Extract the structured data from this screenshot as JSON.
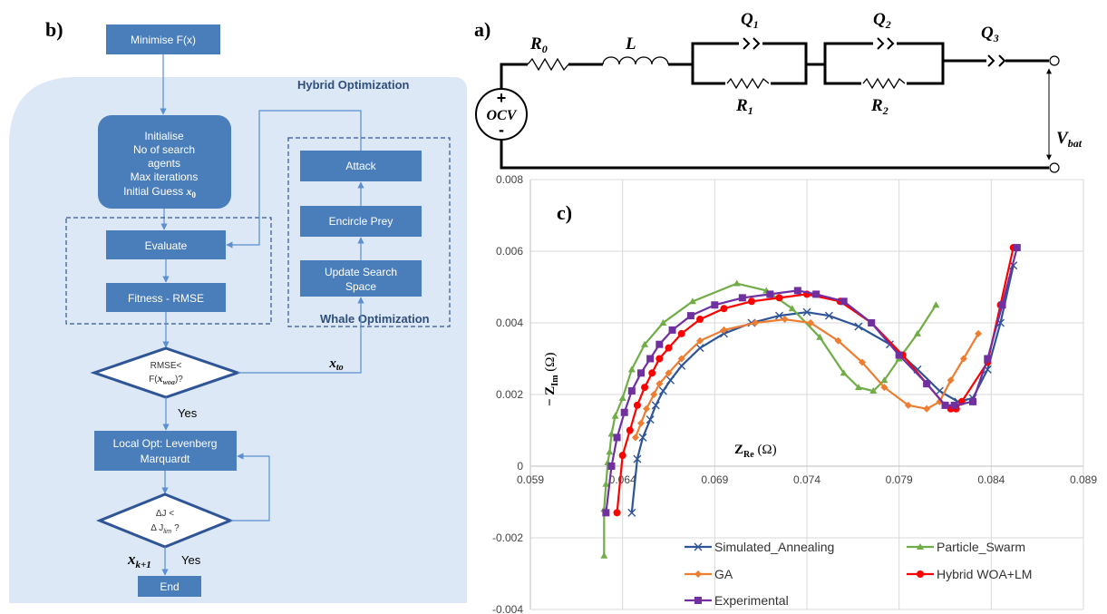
{
  "panel_b": {
    "label": "b)",
    "region_title": "Hybrid Optimization",
    "minimise": "Minimise F(x)",
    "initialise": [
      "Initialise",
      "No of search",
      "agents",
      "Max iterations",
      "Initial Guess"
    ],
    "initial_guess_symbol": "x",
    "initial_guess_sub": "0",
    "evaluate": "Evaluate",
    "fitness": "Fitness - RMSE",
    "attack": "Attack",
    "encircle": "Encircle Prey",
    "update": [
      "Update Search",
      "Space"
    ],
    "whale_title": "Whale Optimization",
    "decision1": [
      "RMSE<",
      "F("
    ],
    "decision1_symbol": "x",
    "decision1_sub": "woa",
    "decision1_end": ")?",
    "x_to_symbol": "x",
    "x_to_sub": "to",
    "yes1": "Yes",
    "local_opt": [
      "Local Opt: Levenberg",
      "Marquardt"
    ],
    "decision2": [
      "ΔJ <",
      "Δ J",
      "?"
    ],
    "decision2_sub": "lim",
    "xk1_symbol": "x",
    "xk1_sub": "k+1",
    "yes2": "Yes",
    "end": "End",
    "colors": {
      "box": "#4a7ebb",
      "region": "#dce8f5",
      "line": "#5b8fd0"
    }
  },
  "panel_a": {
    "label": "a)",
    "source": {
      "line1": "+",
      "line2": "OCV",
      "line3": "-"
    },
    "R0": {
      "sym": "R",
      "sub": "0"
    },
    "L": "L",
    "Q1": {
      "sym": "Q",
      "sub": "1"
    },
    "R1": {
      "sym": "R",
      "sub": "1"
    },
    "Q2": {
      "sym": "Q",
      "sub": "2"
    },
    "R2": {
      "sym": "R",
      "sub": "2"
    },
    "Q3": {
      "sym": "Q",
      "sub": "3"
    },
    "Vbat": {
      "sym": "V",
      "sub": "bat"
    }
  },
  "chart_data": {
    "type": "scatter",
    "panel_label": "c)",
    "xlabel": "Z",
    "xlabel_sub": "Re",
    "xlabel_unit": " (Ω)",
    "ylabel": "− Z",
    "ylabel_sub": "Im",
    "ylabel_unit": " (Ω)",
    "xlim": [
      0.059,
      0.089
    ],
    "ylim": [
      -0.004,
      0.008
    ],
    "xticks": [
      "0.059",
      "0.064",
      "0.069",
      "0.074",
      "0.079",
      "0.084",
      "0.089"
    ],
    "yticks": [
      "-0.004",
      "-0.002",
      "0",
      "0.002",
      "0.004",
      "0.006",
      "0.008"
    ],
    "xtick_values": [
      0.059,
      0.064,
      0.069,
      0.074,
      0.079,
      0.084,
      0.089
    ],
    "ytick_values": [
      -0.004,
      -0.002,
      0,
      0.002,
      0.004,
      0.006,
      0.008
    ],
    "grid": true,
    "legend_position": "bottom",
    "series": [
      {
        "name": "Simulated_Annealing",
        "color": "#2f5597",
        "marker": "x",
        "x": [
          0.0645,
          0.0648,
          0.0651,
          0.0655,
          0.0658,
          0.0662,
          0.0666,
          0.0672,
          0.0682,
          0.0695,
          0.071,
          0.0725,
          0.074,
          0.0752,
          0.0768,
          0.0785,
          0.08,
          0.0812,
          0.0822,
          0.083,
          0.0838,
          0.0845,
          0.0852
        ],
        "y": [
          -0.0013,
          0.0002,
          0.0008,
          0.0013,
          0.0017,
          0.0021,
          0.0024,
          0.0028,
          0.0033,
          0.0037,
          0.004,
          0.0042,
          0.0043,
          0.0042,
          0.0039,
          0.0034,
          0.0027,
          0.0021,
          0.0018,
          0.0019,
          0.0027,
          0.004,
          0.0056
        ]
      },
      {
        "name": "Particle_Swarm",
        "color": "#70ad47",
        "marker": "triangle",
        "x": [
          0.063,
          0.063,
          0.0631,
          0.0632,
          0.0633,
          0.0634,
          0.0636,
          0.064,
          0.0645,
          0.0652,
          0.0662,
          0.0678,
          0.0702,
          0.0718,
          0.0732,
          0.0747,
          0.076,
          0.0768,
          0.0776,
          0.0782,
          0.079,
          0.08,
          0.081
        ],
        "y": [
          -0.0025,
          -0.0012,
          -0.0005,
          0.0001,
          0.0004,
          0.0009,
          0.0014,
          0.0019,
          0.0027,
          0.0034,
          0.004,
          0.0046,
          0.0051,
          0.0049,
          0.0044,
          0.0036,
          0.0026,
          0.0022,
          0.0021,
          0.0024,
          0.003,
          0.0037,
          0.0045
        ]
      },
      {
        "name": "GA",
        "color": "#ed7d31",
        "marker": "diamond",
        "x": [
          0.0647,
          0.065,
          0.0653,
          0.0657,
          0.066,
          0.0665,
          0.0672,
          0.0682,
          0.0695,
          0.0712,
          0.0728,
          0.0742,
          0.0757,
          0.077,
          0.0782,
          0.0795,
          0.0805,
          0.0812,
          0.0818,
          0.0825,
          0.0833
        ],
        "y": [
          0.0008,
          0.0012,
          0.0016,
          0.002,
          0.0023,
          0.0026,
          0.003,
          0.0035,
          0.0038,
          0.004,
          0.0041,
          0.004,
          0.0035,
          0.0029,
          0.0022,
          0.0017,
          0.0016,
          0.0018,
          0.0024,
          0.003,
          0.0037
        ]
      },
      {
        "name": "Hybrid WOA+LM",
        "color": "#ff0000",
        "marker": "circle",
        "x": [
          0.0637,
          0.064,
          0.0644,
          0.0648,
          0.0652,
          0.0656,
          0.066,
          0.0665,
          0.0672,
          0.0682,
          0.0695,
          0.071,
          0.0725,
          0.074,
          0.0758,
          0.0775,
          0.0792,
          0.0805,
          0.0815,
          0.0818,
          0.0821,
          0.0824,
          0.0838,
          0.0845,
          0.0852
        ],
        "y": [
          -0.0013,
          0.0003,
          0.001,
          0.0017,
          0.0022,
          0.0026,
          0.003,
          0.0033,
          0.0037,
          0.0041,
          0.0044,
          0.0046,
          0.0047,
          0.0048,
          0.0046,
          0.004,
          0.0031,
          0.0023,
          0.0017,
          0.0016,
          0.0016,
          0.0018,
          0.0029,
          0.0045,
          0.0061
        ]
      },
      {
        "name": "Experimental",
        "color": "#7030a0",
        "marker": "square",
        "x": [
          0.0631,
          0.0634,
          0.0637,
          0.0641,
          0.0645,
          0.065,
          0.0655,
          0.066,
          0.0667,
          0.0677,
          0.069,
          0.0705,
          0.072,
          0.0735,
          0.0745,
          0.076,
          0.0775,
          0.079,
          0.0805,
          0.0815,
          0.082,
          0.083,
          0.0838,
          0.0846,
          0.0854
        ],
        "y": [
          -0.0013,
          0.0,
          0.0008,
          0.0015,
          0.0021,
          0.0026,
          0.003,
          0.0034,
          0.0038,
          0.0042,
          0.0045,
          0.0047,
          0.0048,
          0.0049,
          0.0048,
          0.0046,
          0.004,
          0.0031,
          0.0023,
          0.0017,
          0.0017,
          0.0018,
          0.003,
          0.0045,
          0.0061
        ]
      }
    ]
  }
}
